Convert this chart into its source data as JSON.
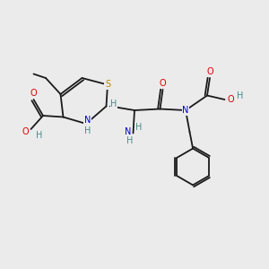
{
  "bg_color": "#ebebeb",
  "bond_color": "#1a1a1a",
  "atom_colors": {
    "S": "#b8860b",
    "N": "#0000cc",
    "O": "#dd0000",
    "H": "#4a8a8a"
  },
  "font_size": 7.0
}
